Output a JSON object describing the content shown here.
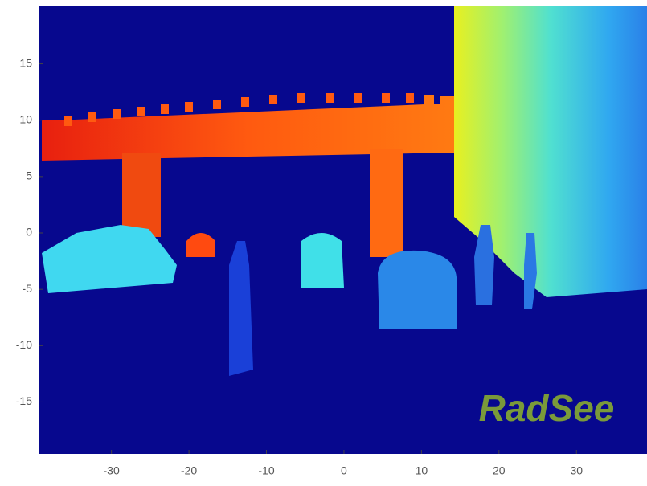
{
  "chart_data": {
    "type": "image",
    "xlim": [
      -39.4,
      39.1
    ],
    "ylim": [
      -19.6,
      20.1
    ],
    "xticks": [
      -30,
      -20,
      -10,
      0,
      10,
      20,
      30
    ],
    "yticks": [
      15,
      10,
      5,
      0,
      -5,
      -10,
      -15
    ],
    "logo": "RadSee"
  }
}
